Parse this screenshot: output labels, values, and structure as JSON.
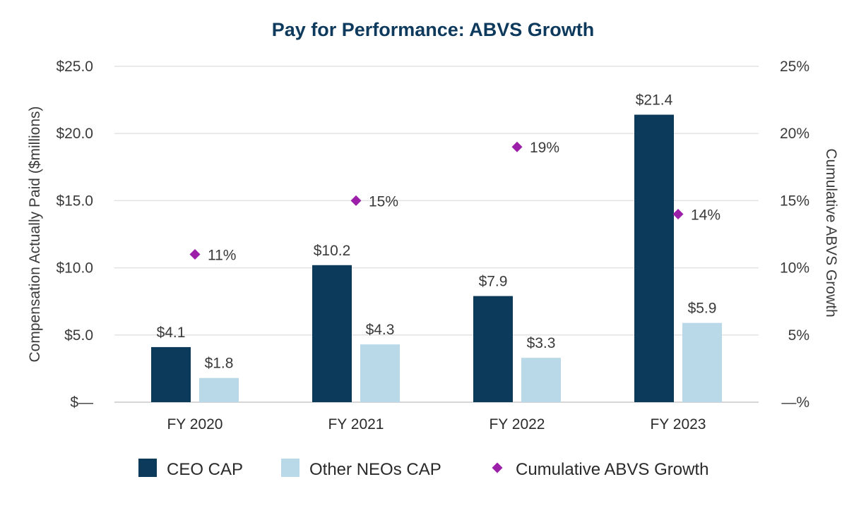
{
  "chart_data": {
    "type": "bar",
    "title": "Pay for Performance: ABVS Growth",
    "categories": [
      "FY 2020",
      "FY 2021",
      "FY 2022",
      "FY 2023"
    ],
    "series": [
      {
        "name": "CEO CAP",
        "kind": "bar",
        "axis": "left",
        "color": "#0b3a5b",
        "values": [
          4.1,
          10.2,
          7.9,
          21.4
        ],
        "labels": [
          "$4.1",
          "$10.2",
          "$7.9",
          "$21.4"
        ]
      },
      {
        "name": "Other NEOs CAP",
        "kind": "bar",
        "axis": "left",
        "color": "#b9d8e8",
        "values": [
          1.8,
          4.3,
          3.3,
          5.9
        ],
        "labels": [
          "$1.8",
          "$4.3",
          "$3.3",
          "$5.9"
        ]
      },
      {
        "name": "Cumulative ABVS Growth",
        "kind": "scatter",
        "axis": "right",
        "color": "#9b1fa8",
        "values": [
          11,
          15,
          19,
          14
        ],
        "labels": [
          "11%",
          "15%",
          "19%",
          "14%"
        ]
      }
    ],
    "ylabel": "Compensation Actually Paid ($millions)",
    "y2label": "Cumulative ABVS Growth",
    "ylim": [
      0,
      25
    ],
    "y2lim": [
      0,
      25
    ],
    "yticks": [
      0,
      5,
      10,
      15,
      20,
      25
    ],
    "ytick_labels": [
      "$—",
      "$5.0",
      "$10.0",
      "$15.0",
      "$20.0",
      "$25.0"
    ],
    "y2ticks": [
      0,
      5,
      10,
      15,
      20,
      25
    ],
    "y2tick_labels": [
      "—%",
      "5%",
      "10%",
      "15%",
      "20%",
      "25%"
    ],
    "grid": true,
    "legend_position": "bottom"
  }
}
